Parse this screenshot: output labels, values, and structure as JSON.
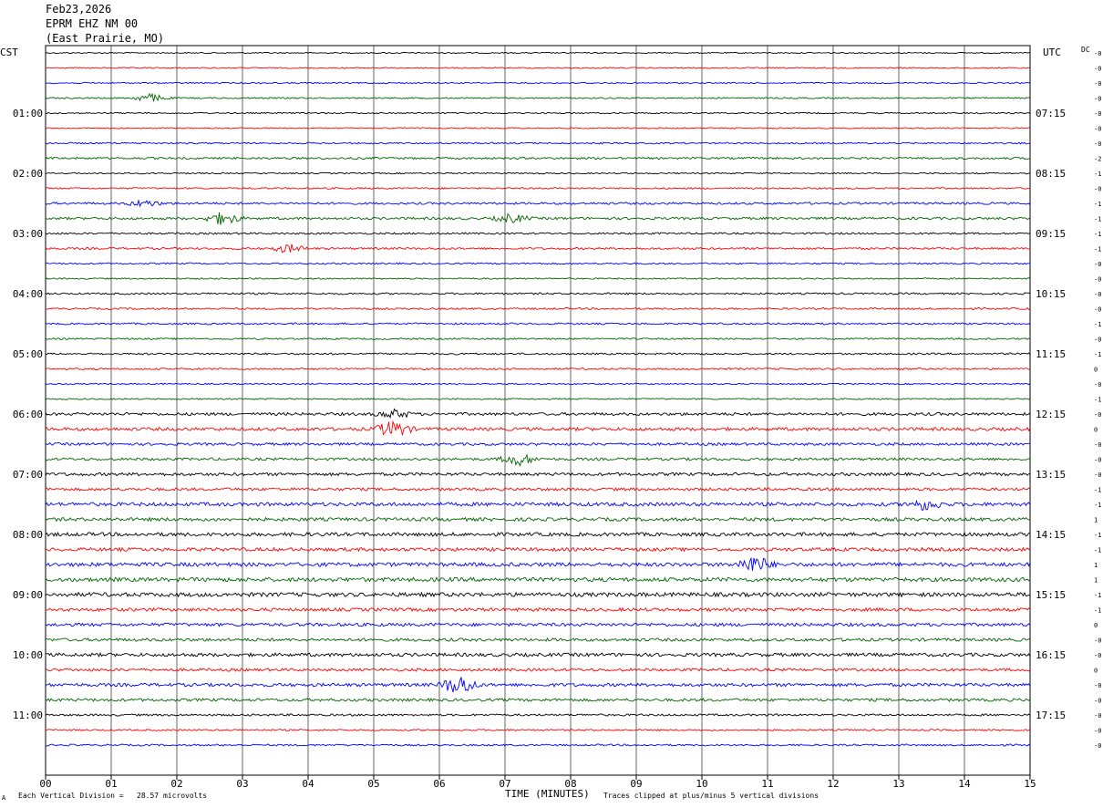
{
  "header": {
    "date": "Feb23,2026",
    "station": "EPRM EHZ NM 00",
    "location": "(East Prairie, MO)"
  },
  "left_tz": "CST",
  "right_tz": "UTC",
  "dc_label": "DC",
  "footer": {
    "left_note": "Each Vertical Division =   28.57 microvolts",
    "axis_title": "TIME (MINUTES)",
    "right_note": "Traces clipped at plus/minus 5 vertical divisions",
    "corner_mark": "A"
  },
  "colors": {
    "trace_cycle": [
      "#000000",
      "#ff0000",
      "#0000ff",
      "#006400"
    ],
    "grid": "#000000",
    "background": "#ffffff"
  },
  "chart_data": {
    "type": "line",
    "title": "",
    "xlabel": "TIME (MINUTES)",
    "ylabel": "",
    "x_ticks": [
      "00",
      "01",
      "02",
      "03",
      "04",
      "05",
      "06",
      "07",
      "08",
      "09",
      "10",
      "11",
      "12",
      "13",
      "14",
      "15"
    ],
    "xlim": [
      0,
      15
    ],
    "grid": "vertical lines at each minute",
    "traces_count": 47,
    "minutes_per_trace": 15,
    "left_hour_labels": [
      {
        "trace": 4,
        "text": "01:00"
      },
      {
        "trace": 8,
        "text": "02:00"
      },
      {
        "trace": 12,
        "text": "03:00"
      },
      {
        "trace": 16,
        "text": "04:00"
      },
      {
        "trace": 20,
        "text": "05:00"
      },
      {
        "trace": 24,
        "text": "06:00"
      },
      {
        "trace": 28,
        "text": "07:00"
      },
      {
        "trace": 32,
        "text": "08:00"
      },
      {
        "trace": 36,
        "text": "09:00"
      },
      {
        "trace": 40,
        "text": "10:00"
      },
      {
        "trace": 44,
        "text": "11:00"
      }
    ],
    "right_hour_labels": [
      {
        "trace": 4,
        "text": "07:15"
      },
      {
        "trace": 8,
        "text": "08:15"
      },
      {
        "trace": 12,
        "text": "09:15"
      },
      {
        "trace": 16,
        "text": "10:15"
      },
      {
        "trace": 20,
        "text": "11:15"
      },
      {
        "trace": 24,
        "text": "12:15"
      },
      {
        "trace": 28,
        "text": "13:15"
      },
      {
        "trace": 32,
        "text": "14:15"
      },
      {
        "trace": 36,
        "text": "15:15"
      },
      {
        "trace": 40,
        "text": "16:15"
      },
      {
        "trace": 44,
        "text": "17:15"
      }
    ],
    "dc_offsets": [
      "-0",
      "-0",
      "-0",
      "-0",
      "-0",
      "-0",
      "-0",
      "-2",
      "-1",
      "-0",
      "-1",
      "-1",
      "-1",
      "-1",
      "-0",
      "-0",
      "-0",
      "-0",
      "-1",
      "-0",
      "-1",
      "0",
      "-0",
      "-1",
      "-0",
      "0",
      "-0",
      "-0",
      "-0",
      "-1",
      "-1",
      "1",
      "-1",
      "-1",
      "1",
      "1",
      "-1",
      "-1",
      "0",
      "-0",
      "-0",
      "0",
      "-0",
      "-0",
      "-0",
      "-0",
      "-0"
    ],
    "trace_activity": [
      0.3,
      0.3,
      0.35,
      0.35,
      0.35,
      0.3,
      0.4,
      0.5,
      0.35,
      0.4,
      0.55,
      0.6,
      0.45,
      0.5,
      0.4,
      0.35,
      0.45,
      0.45,
      0.45,
      0.4,
      0.45,
      0.45,
      0.35,
      0.35,
      0.7,
      0.8,
      0.65,
      0.65,
      0.75,
      0.7,
      0.9,
      0.85,
      0.9,
      0.85,
      0.95,
      1.0,
      1.0,
      0.8,
      0.8,
      0.75,
      0.85,
      0.7,
      0.8,
      0.7,
      0.5,
      0.4,
      0.45
    ],
    "events": [
      {
        "trace": 3,
        "minute": 1.6,
        "amp": 2.0
      },
      {
        "trace": 10,
        "minute": 1.5,
        "amp": 1.5
      },
      {
        "trace": 11,
        "minute": 2.7,
        "amp": 3.0
      },
      {
        "trace": 11,
        "minute": 7.1,
        "amp": 2.0
      },
      {
        "trace": 13,
        "minute": 3.7,
        "amp": 2.0
      },
      {
        "trace": 24,
        "minute": 5.3,
        "amp": 2.0
      },
      {
        "trace": 25,
        "minute": 5.3,
        "amp": 4.0
      },
      {
        "trace": 27,
        "minute": 7.2,
        "amp": 3.0
      },
      {
        "trace": 30,
        "minute": 13.4,
        "amp": 2.5
      },
      {
        "trace": 34,
        "minute": 10.8,
        "amp": 4.0
      },
      {
        "trace": 42,
        "minute": 6.3,
        "amp": 5.0
      }
    ]
  }
}
